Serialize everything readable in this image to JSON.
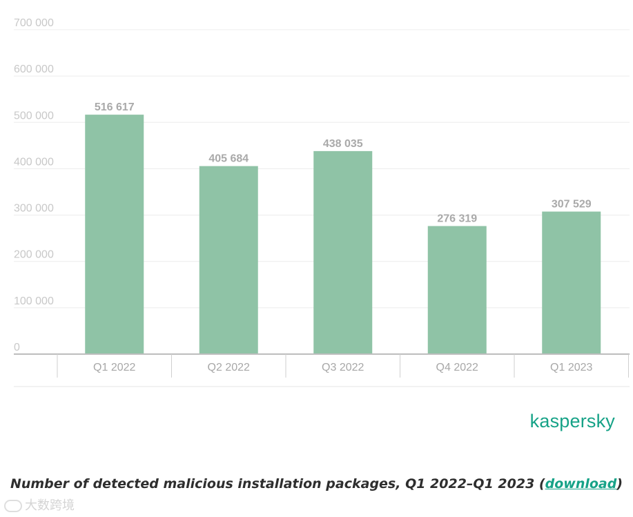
{
  "chart_data": {
    "type": "bar",
    "categories": [
      "Q1 2022",
      "Q2 2022",
      "Q3 2022",
      "Q4 2022",
      "Q1 2023"
    ],
    "values": [
      516617,
      405684,
      438035,
      276319,
      307529
    ],
    "value_labels": [
      "516 617",
      "405 684",
      "438 035",
      "276 319",
      "307 529"
    ],
    "yticks": [
      0,
      100000,
      200000,
      300000,
      400000,
      500000,
      600000,
      700000
    ],
    "ytick_labels": [
      "0",
      "100 000",
      "200 000",
      "300 000",
      "400 000",
      "500 000",
      "600 000",
      "700 000"
    ],
    "ylim": [
      0,
      700000
    ],
    "grid": true,
    "bar_color": "#8fc3a6",
    "title": "Number of detected malicious installation packages, Q1 2022–Q1 2023"
  },
  "caption": {
    "text": "Number of detected malicious installation packages, Q1 2022–Q1 2023 (",
    "link_label": "download",
    "close": ")"
  },
  "brand": {
    "logo_text": "kaspersky",
    "color": "#16a287"
  },
  "watermark": {
    "text": "大数跨境"
  }
}
